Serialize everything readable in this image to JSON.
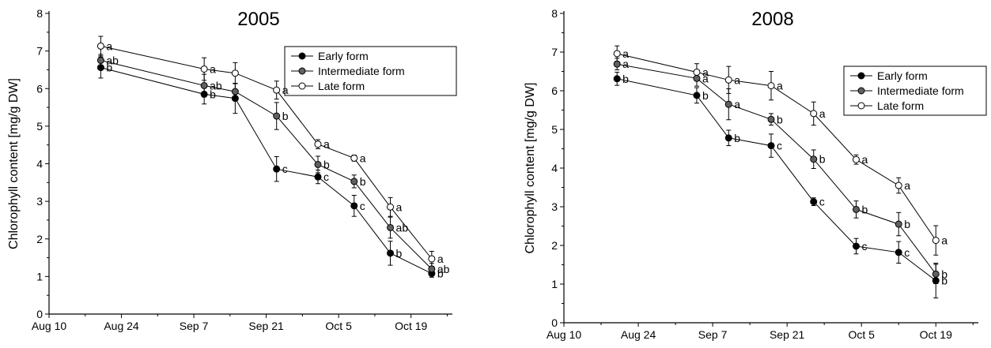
{
  "chart_data": [
    {
      "type": "line",
      "title": "2005",
      "xlabel": "",
      "ylabel": "Chlorophyll content [mg/g DW]",
      "x_ticks": [
        "Aug 10",
        "Aug 24",
        "Sep 7",
        "Sep 21",
        "Oct 5",
        "Oct 19"
      ],
      "y_ticks": [
        "0",
        "1",
        "2",
        "3",
        "4",
        "5",
        "6",
        "7",
        "8"
      ],
      "ylim": [
        0,
        8
      ],
      "xlim_days": [
        0,
        78
      ],
      "legend_position": "top-right",
      "grid": false,
      "series": [
        {
          "name": "Early form",
          "marker": "filled-black",
          "points": [
            {
              "day": 10,
              "y": 6.56,
              "err": 0.28,
              "label": "b"
            },
            {
              "day": 30,
              "y": 5.85,
              "err": 0.26,
              "label": "b"
            },
            {
              "day": 36,
              "y": 5.74,
              "err": 0.4,
              "label": ""
            },
            {
              "day": 44,
              "y": 3.86,
              "err": 0.33,
              "label": "c"
            },
            {
              "day": 52,
              "y": 3.65,
              "err": 0.18,
              "label": "c"
            },
            {
              "day": 59,
              "y": 2.88,
              "err": 0.28,
              "label": "c"
            },
            {
              "day": 66,
              "y": 1.62,
              "err": 0.32,
              "label": "b"
            },
            {
              "day": 74,
              "y": 1.08,
              "err": 0.1,
              "label": "b"
            }
          ]
        },
        {
          "name": "Intermediate form",
          "marker": "filled-gray",
          "points": [
            {
              "day": 10,
              "y": 6.75,
              "err": 0.16,
              "label": "ab"
            },
            {
              "day": 30,
              "y": 6.08,
              "err": 0.3,
              "label": "ab"
            },
            {
              "day": 36,
              "y": 5.92,
              "err": 0.22,
              "label": ""
            },
            {
              "day": 44,
              "y": 5.27,
              "err": 0.36,
              "label": "b"
            },
            {
              "day": 52,
              "y": 3.98,
              "err": 0.22,
              "label": "b"
            },
            {
              "day": 59,
              "y": 3.53,
              "err": 0.17,
              "label": "b"
            },
            {
              "day": 66,
              "y": 2.3,
              "err": 0.28,
              "label": "ab"
            },
            {
              "day": 74,
              "y": 1.2,
              "err": 0.15,
              "label": "ab"
            }
          ]
        },
        {
          "name": "Late form",
          "marker": "open",
          "points": [
            {
              "day": 10,
              "y": 7.13,
              "err": 0.26,
              "label": "a"
            },
            {
              "day": 30,
              "y": 6.52,
              "err": 0.3,
              "label": "a"
            },
            {
              "day": 36,
              "y": 6.41,
              "err": 0.28,
              "label": ""
            },
            {
              "day": 44,
              "y": 5.96,
              "err": 0.24,
              "label": "a"
            },
            {
              "day": 52,
              "y": 4.52,
              "err": 0.12,
              "label": "a"
            },
            {
              "day": 59,
              "y": 4.15,
              "err": 0.08,
              "label": "a"
            },
            {
              "day": 66,
              "y": 2.85,
              "err": 0.25,
              "label": "a"
            },
            {
              "day": 74,
              "y": 1.47,
              "err": 0.2,
              "label": "a"
            }
          ]
        }
      ]
    },
    {
      "type": "line",
      "title": "2008",
      "xlabel": "",
      "ylabel": "Chlorophyll content [mg/g DW]",
      "x_ticks": [
        "Aug 10",
        "Aug 24",
        "Sep 7",
        "Sep 21",
        "Oct 5",
        "Oct 19"
      ],
      "y_ticks": [
        "0",
        "1",
        "2",
        "3",
        "4",
        "5",
        "6",
        "7",
        "8"
      ],
      "ylim": [
        0,
        8
      ],
      "xlim_days": [
        0,
        78
      ],
      "legend_position": "top-right",
      "grid": false,
      "series": [
        {
          "name": "Early form",
          "marker": "filled-black",
          "points": [
            {
              "day": 10,
              "y": 6.31,
              "err": 0.17,
              "label": "b"
            },
            {
              "day": 25,
              "y": 5.88,
              "err": 0.2,
              "label": "b"
            },
            {
              "day": 31,
              "y": 4.78,
              "err": 0.2,
              "label": "b"
            },
            {
              "day": 39,
              "y": 4.58,
              "err": 0.3,
              "label": "c"
            },
            {
              "day": 47,
              "y": 3.13,
              "err": 0.1,
              "label": "c"
            },
            {
              "day": 55,
              "y": 1.98,
              "err": 0.2,
              "label": "c"
            },
            {
              "day": 63,
              "y": 1.82,
              "err": 0.28,
              "label": "c"
            },
            {
              "day": 70,
              "y": 1.09,
              "err": 0.45,
              "label": "b"
            }
          ]
        },
        {
          "name": "Intermediate form",
          "marker": "filled-gray",
          "points": [
            {
              "day": 10,
              "y": 6.69,
              "err": 0.15,
              "label": "a"
            },
            {
              "day": 25,
              "y": 6.32,
              "err": 0.2,
              "label": "a"
            },
            {
              "day": 31,
              "y": 5.65,
              "err": 0.4,
              "label": "a"
            },
            {
              "day": 39,
              "y": 5.26,
              "err": 0.15,
              "label": "b"
            },
            {
              "day": 47,
              "y": 4.23,
              "err": 0.24,
              "label": "b"
            },
            {
              "day": 55,
              "y": 2.93,
              "err": 0.22,
              "label": "b"
            },
            {
              "day": 63,
              "y": 2.55,
              "err": 0.3,
              "label": "b"
            },
            {
              "day": 70,
              "y": 1.26,
              "err": 0.25,
              "label": "b"
            }
          ]
        },
        {
          "name": "Late form",
          "marker": "open",
          "points": [
            {
              "day": 10,
              "y": 6.96,
              "err": 0.2,
              "label": "a"
            },
            {
              "day": 25,
              "y": 6.48,
              "err": 0.22,
              "label": "a"
            },
            {
              "day": 31,
              "y": 6.28,
              "err": 0.35,
              "label": "a"
            },
            {
              "day": 39,
              "y": 6.13,
              "err": 0.37,
              "label": "a"
            },
            {
              "day": 47,
              "y": 5.41,
              "err": 0.3,
              "label": "a"
            },
            {
              "day": 55,
              "y": 4.22,
              "err": 0.12,
              "label": "a"
            },
            {
              "day": 63,
              "y": 3.55,
              "err": 0.2,
              "label": "a"
            },
            {
              "day": 70,
              "y": 2.13,
              "err": 0.38,
              "label": "a"
            }
          ]
        }
      ]
    }
  ]
}
